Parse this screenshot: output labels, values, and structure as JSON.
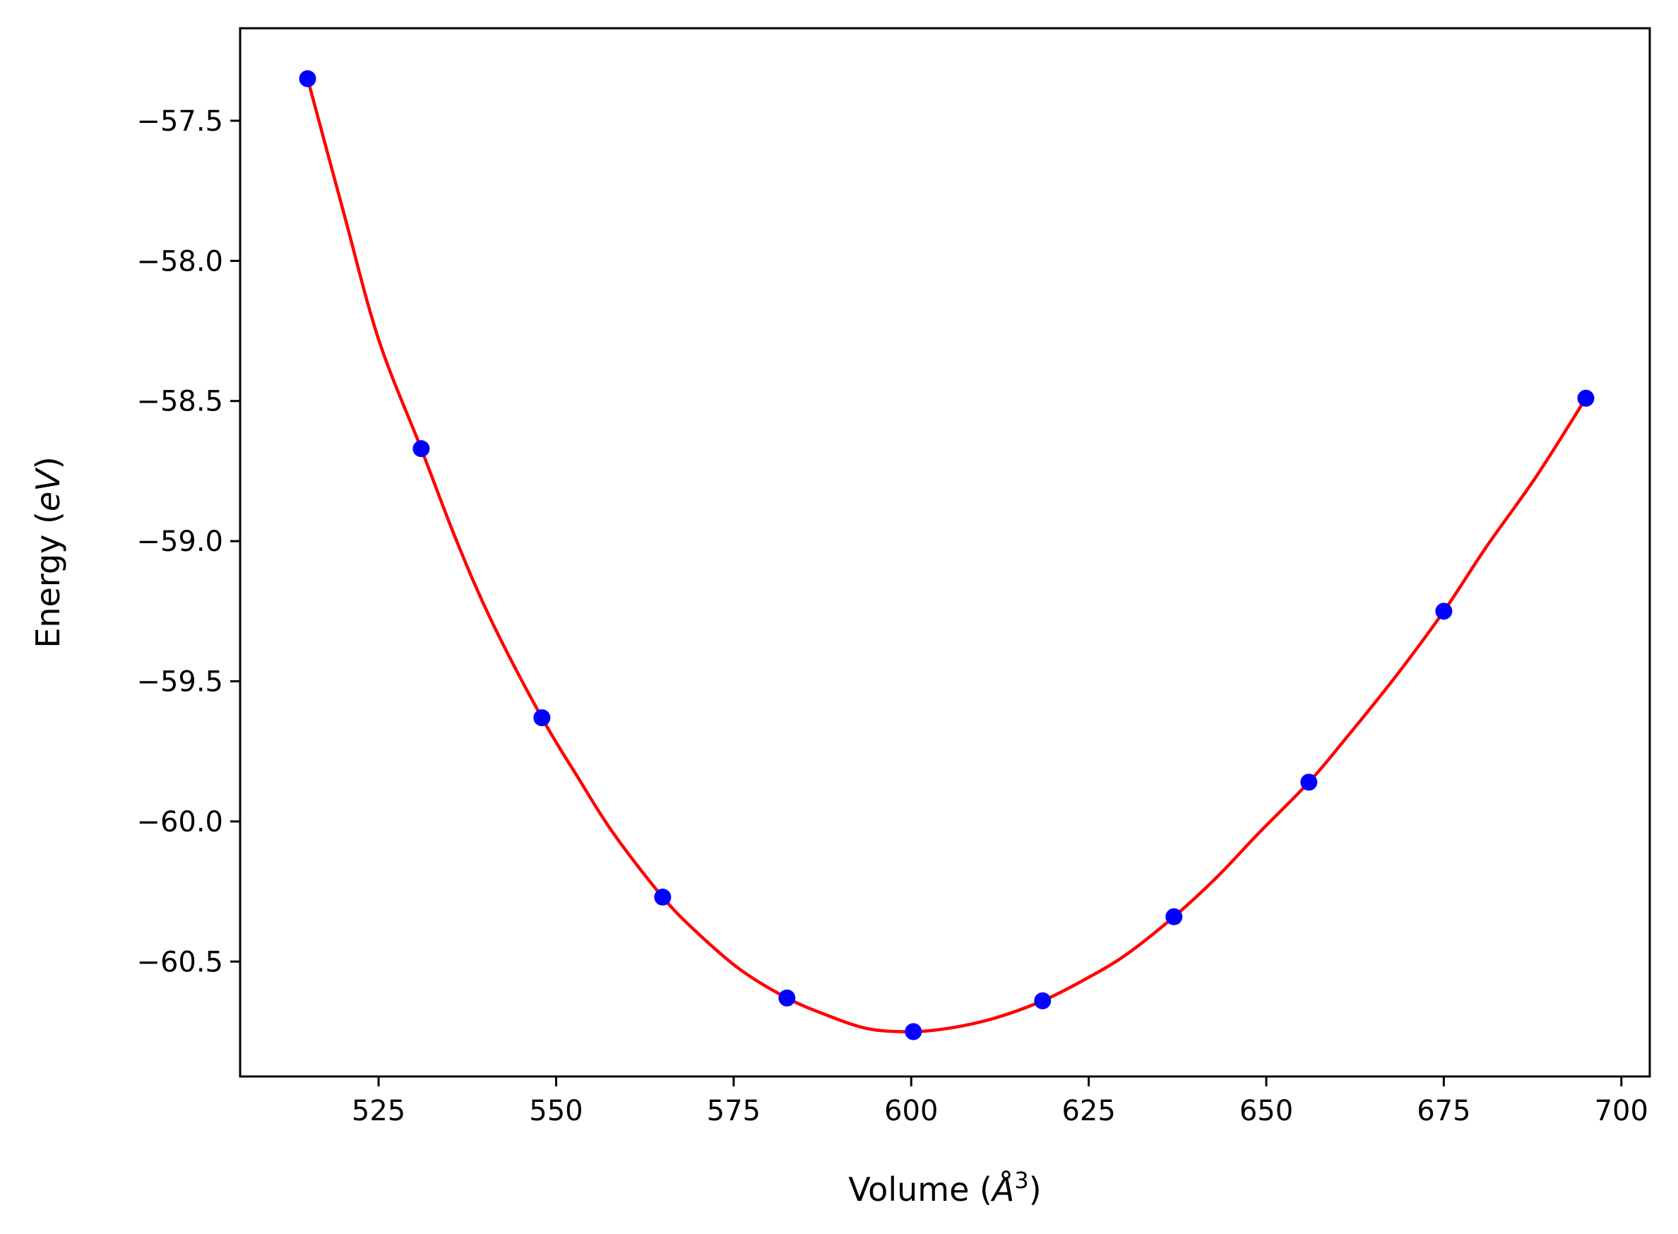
{
  "chart_data": {
    "type": "line",
    "title": "",
    "xlabel_main": "Volume (",
    "xlabel_unit": "Å",
    "xlabel_power": "3",
    "xlabel_close": ")",
    "ylabel_main": "Energy (",
    "ylabel_unit": "eV",
    "ylabel_close": ")",
    "xlim": [
      505.5,
      704.0
    ],
    "ylim": [
      -60.91,
      -57.17
    ],
    "xticks": [
      525,
      550,
      575,
      600,
      625,
      650,
      675,
      700
    ],
    "xtick_labels": [
      "525",
      "550",
      "575",
      "600",
      "625",
      "650",
      "675",
      "700"
    ],
    "yticks": [
      -57.5,
      -58.0,
      -58.5,
      -59.0,
      -59.5,
      -60.0,
      -60.5
    ],
    "ytick_labels": [
      "−57.5",
      "−58.0",
      "−58.5",
      "−59.0",
      "−59.5",
      "−60.0",
      "−60.5"
    ],
    "grid": false,
    "series": [
      {
        "type": "line",
        "color": "#ff0000",
        "x": [
          515.0,
          520.0,
          525.0,
          531.0,
          536.0,
          541.0,
          548.0,
          553.0,
          558.0,
          565.0,
          570.0,
          576.0,
          582.5,
          588.0,
          594.0,
          600.3,
          606.0,
          612.0,
          618.5,
          624.0,
          630.0,
          637.0,
          643.0,
          649.0,
          656.0,
          661.0,
          668.0,
          675.0,
          681.0,
          688.0,
          695.0
        ],
        "y": [
          -57.35,
          -57.82,
          -58.28,
          -58.67,
          -59.0,
          -59.29,
          -59.63,
          -59.84,
          -60.04,
          -60.27,
          -60.4,
          -60.53,
          -60.63,
          -60.69,
          -60.74,
          -60.75,
          -60.735,
          -60.7,
          -60.64,
          -60.57,
          -60.48,
          -60.34,
          -60.2,
          -60.04,
          -59.86,
          -59.71,
          -59.49,
          -59.25,
          -59.02,
          -58.77,
          -58.49
        ]
      },
      {
        "type": "scatter",
        "color": "#0000ff",
        "x": [
          515.0,
          531.0,
          548.0,
          565.0,
          582.5,
          600.3,
          618.5,
          637.0,
          656.0,
          675.0,
          695.0
        ],
        "y": [
          -57.35,
          -58.67,
          -59.63,
          -60.27,
          -60.63,
          -60.75,
          -60.64,
          -60.34,
          -59.86,
          -59.25,
          -58.49
        ]
      }
    ]
  }
}
